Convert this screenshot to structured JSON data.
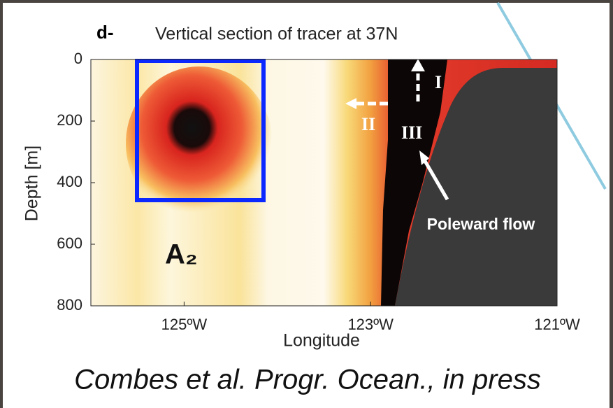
{
  "chart_data": {
    "type": "section",
    "panel_label": "d-",
    "title": "Vertical section of tracer at 37N",
    "xlabel": "Longitude",
    "ylabel": "Depth [m]",
    "xlim": [
      -126,
      -121
    ],
    "xticks": [
      {
        "value": -125,
        "label": "125ºW"
      },
      {
        "value": -123,
        "label": "123ºW"
      },
      {
        "value": -121,
        "label": "121ºW"
      }
    ],
    "ylim": [
      0,
      800
    ],
    "yticks": [
      0,
      200,
      400,
      600,
      800
    ],
    "y_inverted": true,
    "annotations": {
      "region": "A₂",
      "flow": "Poleward flow",
      "arrow_1": "I",
      "arrow_2": "II",
      "arrow_3": "III"
    },
    "caption": "Combes et al. Progr. Ocean., in press"
  }
}
